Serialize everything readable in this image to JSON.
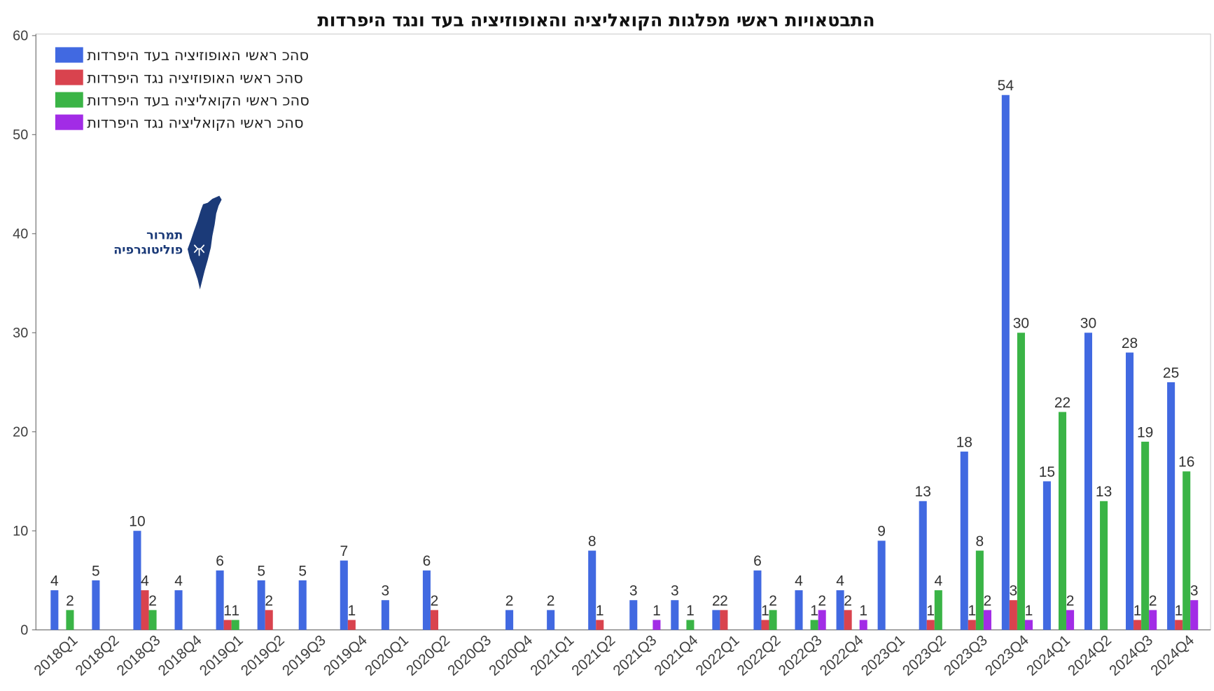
{
  "chart_data": {
    "type": "bar",
    "title": "התבטאויות ראשי מפלגות הקואליציה והאופוזיציה בעד ונגד היפרדות",
    "categories": [
      "2018Q1",
      "2018Q2",
      "2018Q3",
      "2018Q4",
      "2019Q1",
      "2019Q2",
      "2019Q3",
      "2019Q4",
      "2020Q1",
      "2020Q2",
      "2020Q3",
      "2020Q4",
      "2021Q1",
      "2021Q2",
      "2021Q3",
      "2021Q4",
      "2022Q1",
      "2022Q2",
      "2022Q3",
      "2022Q4",
      "2023Q1",
      "2023Q2",
      "2023Q3",
      "2023Q4",
      "2024Q1",
      "2024Q2",
      "2024Q3",
      "2024Q4"
    ],
    "series": [
      {
        "name": "סהכ ראשי האופוזיציה בעד היפרדות",
        "color": "#4169e1",
        "values": [
          4,
          5,
          10,
          4,
          6,
          5,
          5,
          7,
          3,
          6,
          0,
          2,
          2,
          8,
          3,
          3,
          2,
          6,
          4,
          4,
          9,
          13,
          18,
          54,
          15,
          30,
          28,
          25
        ]
      },
      {
        "name": "סהכ ראשי האופוזיציה נגד היפרדות",
        "color": "#d9434e",
        "values": [
          0,
          0,
          4,
          0,
          1,
          2,
          0,
          1,
          0,
          2,
          0,
          0,
          0,
          1,
          0,
          0,
          2,
          1,
          0,
          2,
          0,
          1,
          1,
          3,
          0,
          0,
          1,
          1
        ]
      },
      {
        "name": "סהכ ראשי הקואליציה בעד היפרדות",
        "color": "#3ab446",
        "values": [
          2,
          0,
          2,
          0,
          1,
          0,
          0,
          0,
          0,
          0,
          0,
          0,
          0,
          0,
          0,
          1,
          0,
          2,
          1,
          0,
          0,
          4,
          8,
          30,
          22,
          13,
          19,
          16
        ]
      },
      {
        "name": "סהכ ראשי הקואליציה נגד היפרדות",
        "color": "#a22ce6",
        "values": [
          0,
          0,
          0,
          0,
          0,
          0,
          0,
          0,
          0,
          0,
          0,
          0,
          0,
          0,
          1,
          0,
          0,
          0,
          2,
          1,
          0,
          0,
          2,
          1,
          2,
          0,
          2,
          3
        ]
      }
    ],
    "ylim": [
      0,
      60
    ],
    "yticks": [
      0,
      10,
      20,
      30,
      40,
      50,
      60
    ],
    "grid": false,
    "legend_position": "top-left",
    "data_labels": true
  },
  "logo": {
    "line1": "תמרור",
    "line2": "פוליטוגרפיה",
    "color": "#1b3a78",
    "icon": "israel-map-icon"
  }
}
